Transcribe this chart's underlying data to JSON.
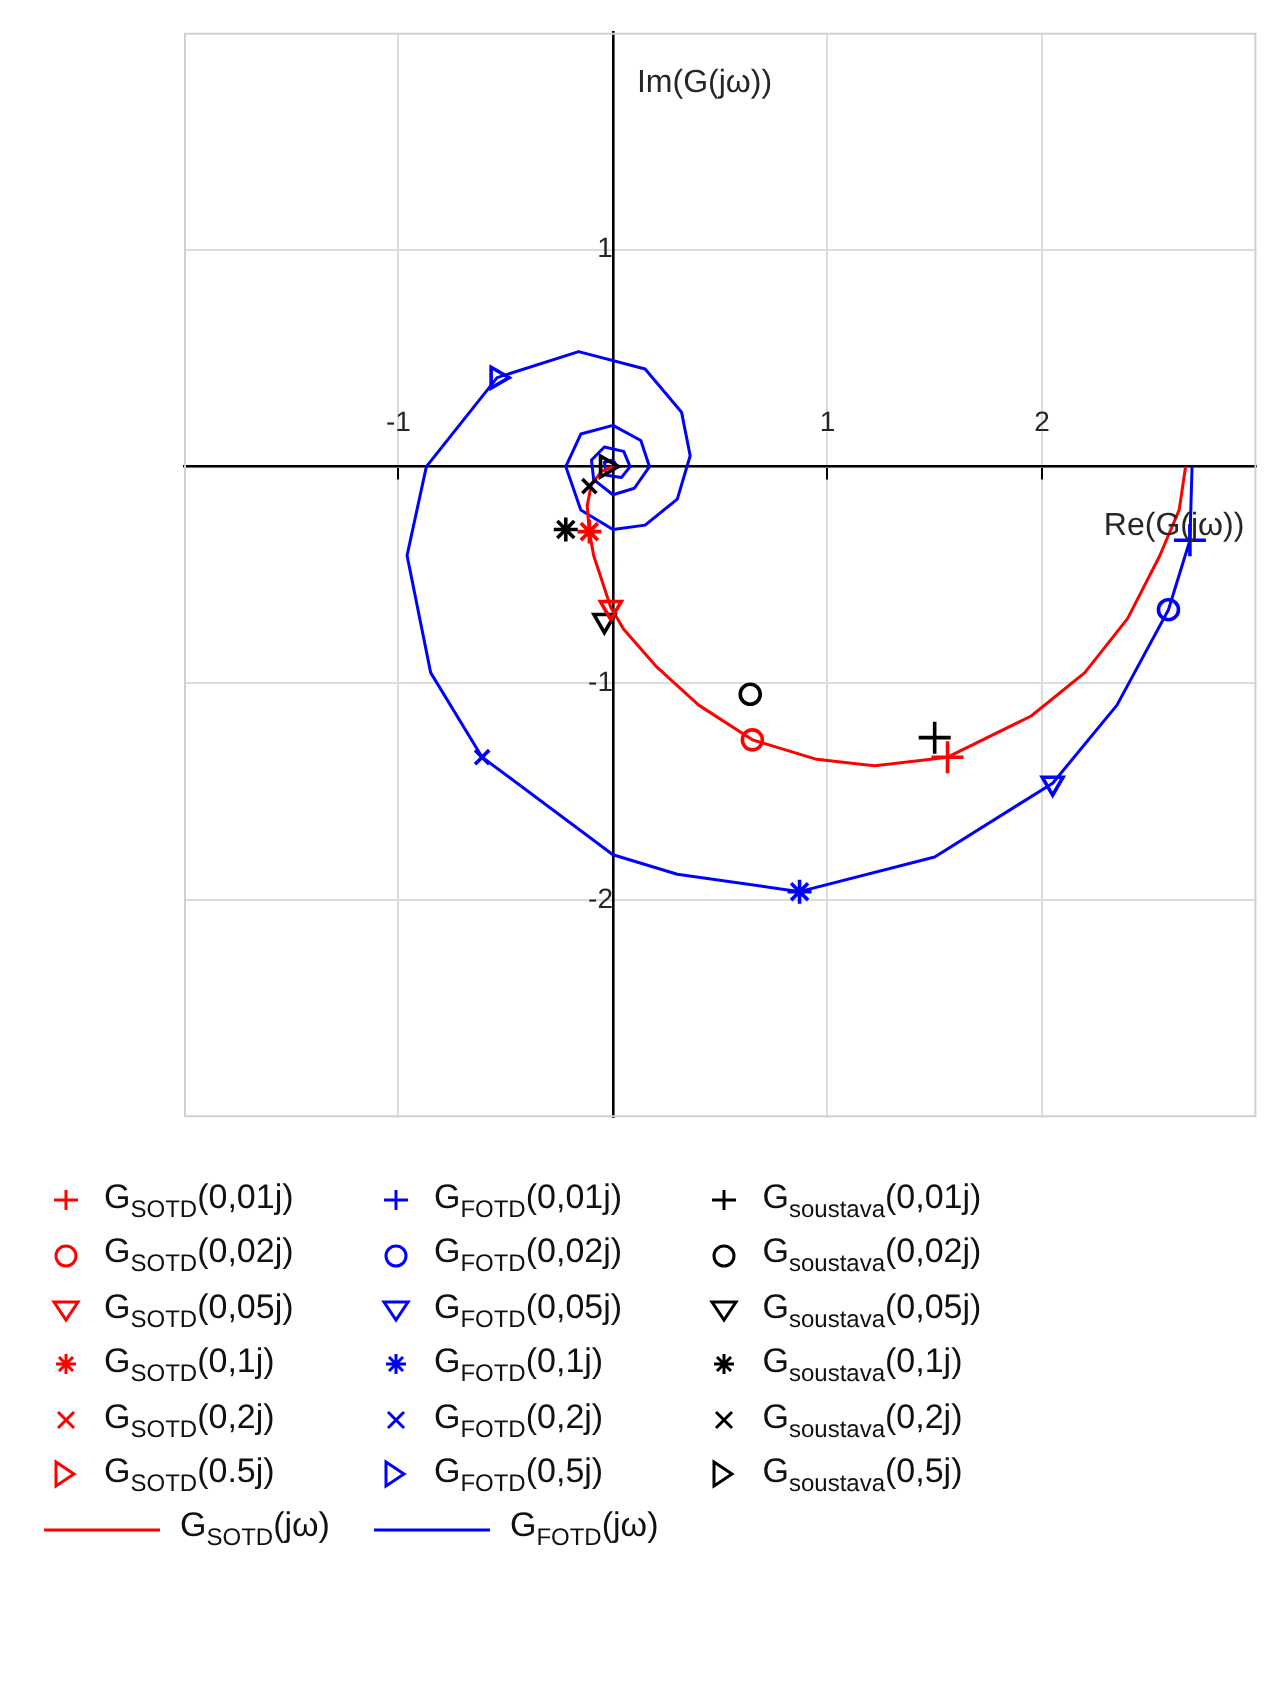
{
  "chart_data": {
    "type": "scatter",
    "xlabel": "Re(G(jω))",
    "ylabel": "Im(G(jω))",
    "xlim": [
      -2,
      3
    ],
    "ylim": [
      -3,
      2
    ],
    "xticks": [
      -1,
      {
        "value": 0,
        "label": null
      },
      1,
      2
    ],
    "yticks": [
      -2,
      -1,
      {
        "value": 0,
        "label": null
      },
      1
    ],
    "grid": true,
    "legend": "bottom",
    "series": [
      {
        "name": "G$_{SOTD}$(0,01j)",
        "color": "#ff0000",
        "type": "scatter",
        "marker": "plus",
        "x": [
          1.56
        ],
        "values": [
          -1.34
        ]
      },
      {
        "name": "G$_{FOTD}$(0,01j)",
        "color": "#0000ff",
        "type": "scatter",
        "marker": "plus",
        "x": [
          2.69
        ],
        "values": [
          -0.34
        ]
      },
      {
        "name": "G$_{soustava}$(0,01j)",
        "color": "#000000",
        "type": "scatter",
        "marker": "plus",
        "x": [
          1.5
        ],
        "values": [
          -1.25
        ]
      },
      {
        "name": "G$_{SOTD}$(0,02j)",
        "color": "#ff0000",
        "type": "scatter",
        "marker": "circle",
        "x": [
          0.65
        ],
        "values": [
          -1.26
        ]
      },
      {
        "name": "G$_{FOTD}$(0,02j)",
        "color": "#0000ff",
        "type": "scatter",
        "marker": "circle",
        "x": [
          2.59
        ],
        "values": [
          -0.66
        ]
      },
      {
        "name": "G$_{soustava}$(0,02j)",
        "color": "#000000",
        "type": "scatter",
        "marker": "circle",
        "x": [
          0.64
        ],
        "values": [
          -1.05
        ]
      },
      {
        "name": "G$_{SOTD}$(0,05j)",
        "color": "#ff0000",
        "type": "scatter",
        "marker": "triangle-down",
        "x": [
          -0.01
        ],
        "values": [
          -0.65
        ]
      },
      {
        "name": "G$_{FOTD}$(0,05j)",
        "color": "#0000ff",
        "type": "scatter",
        "marker": "triangle-down",
        "x": [
          2.05
        ],
        "values": [
          -1.46
        ]
      },
      {
        "name": "G$_{soustava}$(0,05j)",
        "color": "#000000",
        "type": "scatter",
        "marker": "triangle-down",
        "x": [
          -0.04
        ],
        "values": [
          -0.71
        ]
      },
      {
        "name": "G$_{SOTD}$(0,1j)",
        "color": "#ff0000",
        "type": "scatter",
        "x": [
          -0.11
        ],
        "values": [
          -0.3
        ]
      },
      {
        "name": "G$_{FOTD}$(0,1j)",
        "color": "#0000ff",
        "type": "scatter",
        "x": [
          0.87
        ],
        "values": [
          -1.96
        ]
      },
      {
        "name": "G$_{soustava}$(0,1j)",
        "color": "#000000",
        "type": "scatter",
        "x": [
          -0.22
        ],
        "values": [
          -0.29
        ]
      },
      {
        "name": "G$_{SOTD}$(0,2j)",
        "color": "#ff0000",
        "type": "scatter",
        "marker": "x",
        "x": [
          null
        ],
        "values": [
          null
        ]
      },
      {
        "name": "G$_{FOTD}$(0,2j)",
        "color": "#0000ff",
        "type": "scatter",
        "marker": "x",
        "x": [
          -0.61
        ],
        "values": [
          -1.34
        ]
      },
      {
        "name": "G$_{soustava}$(0,2j)",
        "color": "#000000",
        "type": "scatter",
        "marker": "x",
        "x": [
          -0.11
        ],
        "values": [
          -0.09
        ]
      },
      {
        "name": "G$_{SOTD}$(0.5j)",
        "color": "#ff0000",
        "type": "scatter",
        "marker": "triangle-right",
        "x": [
          null
        ],
        "values": [
          null
        ]
      },
      {
        "name": "G$_{FOTD}$(0,5j)",
        "color": "#0000ff",
        "type": "scatter",
        "marker": "triangle-right",
        "x": [
          -0.54
        ],
        "values": [
          0.41
        ]
      },
      {
        "name": "G$_{soustava}$(0,5j)",
        "color": "#000000",
        "type": "scatter",
        "marker": "triangle-right",
        "x": [
          -0.03
        ],
        "values": [
          0
        ]
      },
      {
        "name": "G$_{SOTD}$(jω)",
        "color": "#ff0000",
        "type": "line",
        "marker": "none",
        "x": [
          2.67,
          2.64,
          2.55,
          2.4,
          2.2,
          1.95,
          1.56,
          1.22,
          0.95,
          0.65,
          0.4,
          0.2,
          0.05,
          -0.01,
          -0.09,
          -0.11,
          -0.12,
          -0.1,
          -0.05,
          0
        ],
        "values": [
          0,
          -0.2,
          -0.41,
          -0.7,
          -0.95,
          -1.15,
          -1.34,
          -1.38,
          -1.35,
          -1.26,
          -1.1,
          -0.92,
          -0.75,
          -0.65,
          -0.41,
          -0.3,
          -0.18,
          -0.08,
          -0.02,
          0
        ]
      },
      {
        "name": "G$_{FOTD}$(jω)",
        "color": "#0000ff",
        "type": "line",
        "marker": "none",
        "x": [
          2.7,
          2.69,
          2.59,
          2.35,
          2.05,
          1.5,
          0.87,
          0.3,
          0,
          -0.61,
          -0.85,
          -0.96,
          -0.87,
          -0.54,
          -0.16,
          0.15,
          0.32,
          0.36,
          0.3,
          0.15,
          0,
          -0.15,
          -0.22,
          -0.15,
          0,
          0.13,
          0.17,
          0.1,
          0,
          -0.09,
          -0.1,
          -0.04,
          0.05,
          0.08,
          0.04,
          -0.03,
          -0.04,
          0,
          0.02,
          0
        ],
        "values": [
          0,
          -0.34,
          -0.66,
          -1.1,
          -1.46,
          -1.8,
          -1.96,
          -1.88,
          -1.79,
          -1.34,
          -0.95,
          -0.41,
          0,
          0.41,
          0.53,
          0.45,
          0.25,
          0.05,
          -0.15,
          -0.27,
          -0.29,
          -0.2,
          0,
          0.15,
          0.19,
          0.12,
          0,
          -0.1,
          -0.13,
          -0.06,
          0.03,
          0.09,
          0.07,
          0,
          -0.05,
          -0.04,
          0.02,
          0.03,
          0,
          0
        ]
      }
    ]
  }
}
